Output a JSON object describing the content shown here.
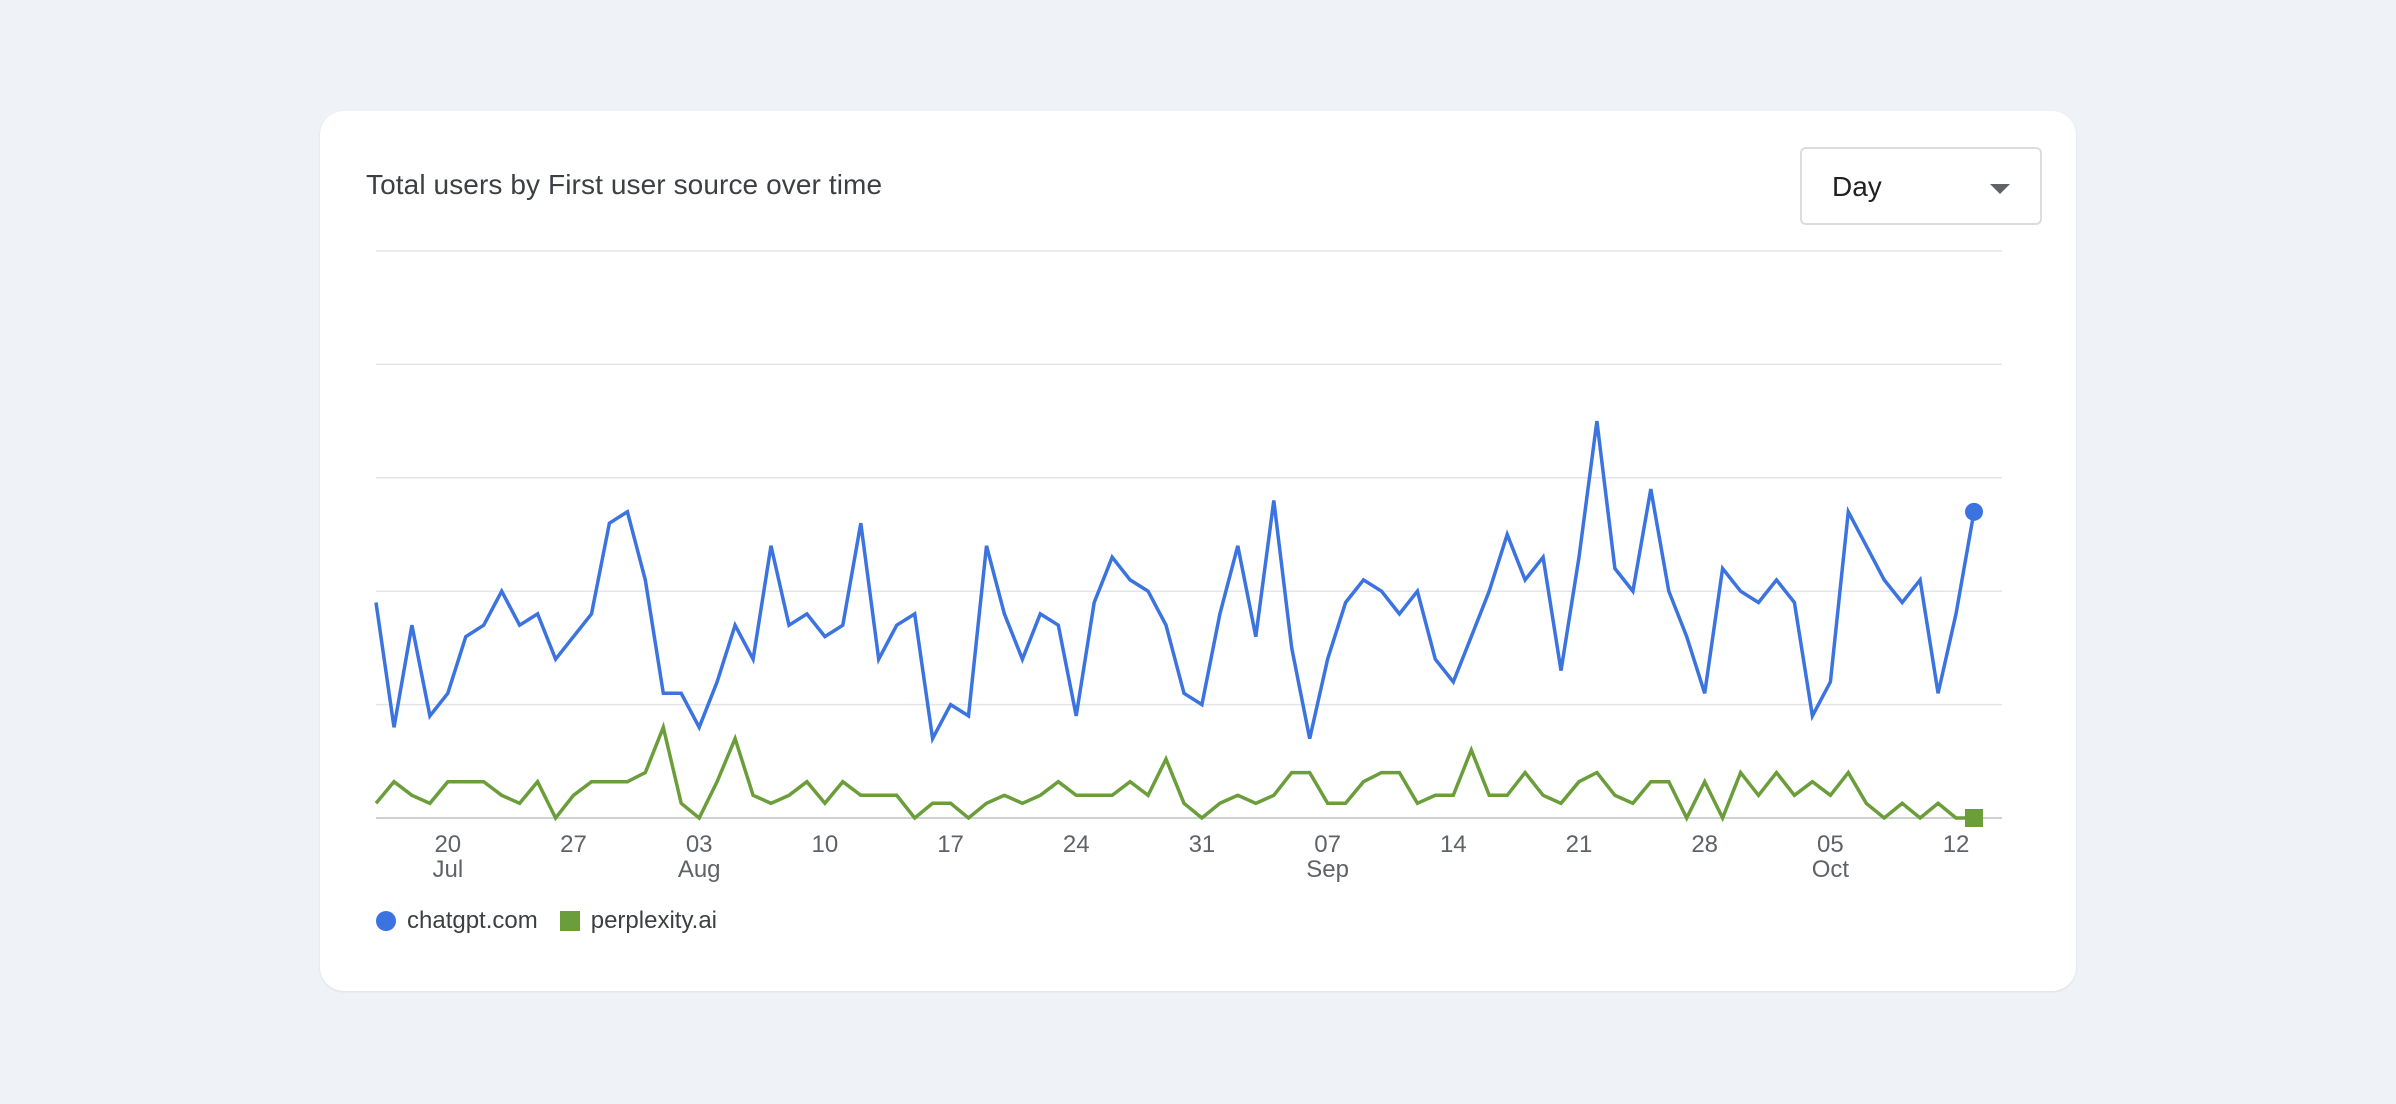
{
  "card": {
    "title": "Total users by First user source over time",
    "dropdown": {
      "value": "Day"
    }
  },
  "colors": {
    "chatgpt": "#3b73e0",
    "perplexity": "#6b9e3b",
    "background": "#eff2f7"
  },
  "chart_data": {
    "type": "line",
    "title": "Total users by First user source over time",
    "xlabel": "",
    "ylabel": "",
    "ylim": [
      0,
      5
    ],
    "grid": true,
    "y_tick_labels": [],
    "x_ticks": [
      {
        "day": "20",
        "month": "Jul",
        "index": 4
      },
      {
        "day": "27",
        "month": "",
        "index": 11
      },
      {
        "day": "03",
        "month": "Aug",
        "index": 18
      },
      {
        "day": "10",
        "month": "",
        "index": 25
      },
      {
        "day": "17",
        "month": "",
        "index": 32
      },
      {
        "day": "24",
        "month": "",
        "index": 39
      },
      {
        "day": "31",
        "month": "",
        "index": 46
      },
      {
        "day": "07",
        "month": "Sep",
        "index": 53
      },
      {
        "day": "14",
        "month": "",
        "index": 60
      },
      {
        "day": "21",
        "month": "",
        "index": 67
      },
      {
        "day": "28",
        "month": "",
        "index": 74
      },
      {
        "day": "05",
        "month": "Oct",
        "index": 81
      },
      {
        "day": "12",
        "month": "",
        "index": 88
      }
    ],
    "legend_position": "bottom-left",
    "series": [
      {
        "name": "chatgpt.com",
        "marker": "circle",
        "values": [
          1.9,
          0.8,
          1.7,
          0.9,
          1.1,
          1.6,
          1.7,
          2.0,
          1.7,
          1.8,
          1.4,
          1.6,
          1.8,
          2.6,
          2.7,
          2.1,
          1.1,
          1.1,
          0.8,
          1.2,
          1.7,
          1.4,
          2.4,
          1.7,
          1.8,
          1.6,
          1.7,
          2.6,
          1.4,
          1.7,
          1.8,
          0.7,
          1.0,
          0.9,
          2.4,
          1.8,
          1.4,
          1.8,
          1.7,
          0.9,
          1.9,
          2.3,
          2.1,
          2.0,
          1.7,
          1.1,
          1.0,
          1.8,
          2.4,
          1.6,
          2.8,
          1.5,
          0.7,
          1.4,
          1.9,
          2.1,
          2.0,
          1.8,
          2.0,
          1.4,
          1.2,
          1.6,
          2.0,
          2.5,
          2.1,
          2.3,
          1.3,
          2.3,
          3.5,
          2.2,
          2.0,
          2.9,
          2.0,
          1.6,
          1.1,
          2.2,
          2.0,
          1.9,
          2.1,
          1.9,
          0.9,
          1.2,
          2.7,
          2.4,
          2.1,
          1.9,
          2.1,
          1.1,
          1.8,
          2.7
        ]
      },
      {
        "name": "perplexity.ai",
        "marker": "square",
        "values": [
          0.13,
          0.32,
          0.2,
          0.13,
          0.32,
          0.32,
          0.32,
          0.2,
          0.13,
          0.32,
          0.0,
          0.2,
          0.32,
          0.32,
          0.32,
          0.4,
          0.8,
          0.13,
          0.0,
          0.32,
          0.7,
          0.2,
          0.13,
          0.2,
          0.32,
          0.13,
          0.32,
          0.2,
          0.2,
          0.2,
          0.0,
          0.13,
          0.13,
          0.0,
          0.13,
          0.2,
          0.13,
          0.2,
          0.32,
          0.2,
          0.2,
          0.2,
          0.32,
          0.2,
          0.52,
          0.13,
          0.0,
          0.13,
          0.2,
          0.13,
          0.2,
          0.4,
          0.4,
          0.13,
          0.13,
          0.32,
          0.4,
          0.4,
          0.13,
          0.2,
          0.2,
          0.6,
          0.2,
          0.2,
          0.4,
          0.2,
          0.13,
          0.32,
          0.4,
          0.2,
          0.13,
          0.32,
          0.32,
          0.0,
          0.32,
          0.0,
          0.4,
          0.2,
          0.4,
          0.2,
          0.32,
          0.2,
          0.4,
          0.13,
          0.0,
          0.13,
          0.0,
          0.13,
          0.0,
          0.0
        ]
      }
    ]
  }
}
